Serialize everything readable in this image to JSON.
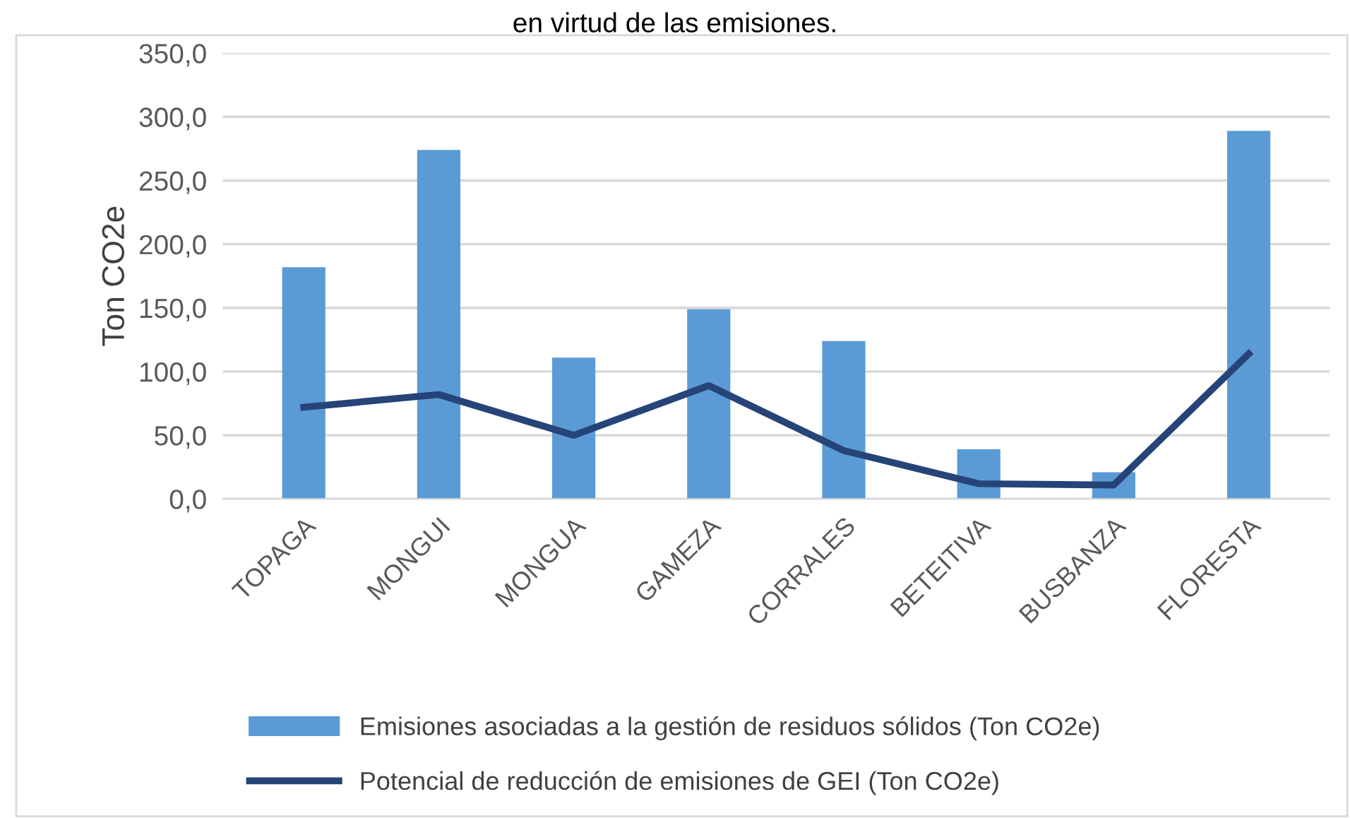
{
  "chart_data": {
    "type": "bar",
    "title": "en virtud de las emisiones.",
    "ylabel": "Ton CO2e",
    "categories": [
      "TOPAGA",
      "MONGUI",
      "MONGUA",
      "GAMEZA",
      "CORRALES",
      "BETEITIVA",
      "BUSBANZA",
      "FLORESTA"
    ],
    "series": [
      {
        "name": "Emisiones asociadas a la gestión de residuos sólidos (Ton CO2e)",
        "color": "#5b9bd5",
        "values": [
          182,
          274,
          111,
          149,
          124,
          39,
          21,
          289
        ]
      },
      {
        "name": "Potencial de reducción de emisiones de GEI (Ton CO2e)",
        "type": "line",
        "color": "#264478",
        "values": [
          72,
          82,
          50,
          89,
          38,
          12,
          11,
          114
        ]
      }
    ],
    "ylim": [
      0,
      350
    ],
    "yticks": [
      {
        "value": 0,
        "label": "0,0"
      },
      {
        "value": 50,
        "label": "50,0"
      },
      {
        "value": 100,
        "label": "100,0"
      },
      {
        "value": 150,
        "label": "150,0"
      },
      {
        "value": 200,
        "label": "200,0"
      },
      {
        "value": 250,
        "label": "250,0"
      },
      {
        "value": 300,
        "label": "300,0"
      },
      {
        "value": 350,
        "label": "350,0"
      }
    ],
    "grid": "y",
    "legend": "bottom",
    "marker": "none",
    "line_style": "solid"
  }
}
